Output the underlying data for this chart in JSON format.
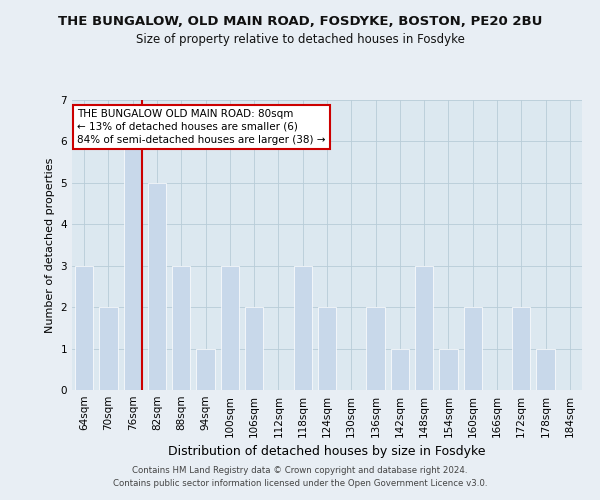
{
  "title": "THE BUNGALOW, OLD MAIN ROAD, FOSDYKE, BOSTON, PE20 2BU",
  "subtitle": "Size of property relative to detached houses in Fosdyke",
  "xlabel": "Distribution of detached houses by size in Fosdyke",
  "ylabel": "Number of detached properties",
  "categories": [
    "64sqm",
    "70sqm",
    "76sqm",
    "82sqm",
    "88sqm",
    "94sqm",
    "100sqm",
    "106sqm",
    "112sqm",
    "118sqm",
    "124sqm",
    "130sqm",
    "136sqm",
    "142sqm",
    "148sqm",
    "154sqm",
    "160sqm",
    "166sqm",
    "172sqm",
    "178sqm",
    "184sqm"
  ],
  "values": [
    3,
    2,
    6,
    5,
    3,
    1,
    3,
    2,
    0,
    3,
    2,
    0,
    2,
    1,
    3,
    1,
    2,
    0,
    2,
    1,
    0
  ],
  "bar_color": "#c8d8ea",
  "highlight_bar_index": 2,
  "highlight_line_color": "#cc0000",
  "ylim": [
    0,
    7
  ],
  "yticks": [
    0,
    1,
    2,
    3,
    4,
    5,
    6,
    7
  ],
  "annotation_text": "THE BUNGALOW OLD MAIN ROAD: 80sqm\n← 13% of detached houses are smaller (6)\n84% of semi-detached houses are larger (38) →",
  "footer_line1": "Contains HM Land Registry data © Crown copyright and database right 2024.",
  "footer_line2": "Contains public sector information licensed under the Open Government Licence v3.0.",
  "bg_color": "#e8eef4",
  "plot_bg_color": "#dce8f0",
  "annotation_box_color": "#ffffff",
  "annotation_border_color": "#cc0000",
  "title_fontsize": 9.5,
  "subtitle_fontsize": 8.5,
  "xlabel_fontsize": 9,
  "ylabel_fontsize": 8,
  "tick_fontsize": 7.5,
  "footer_fontsize": 6.2
}
